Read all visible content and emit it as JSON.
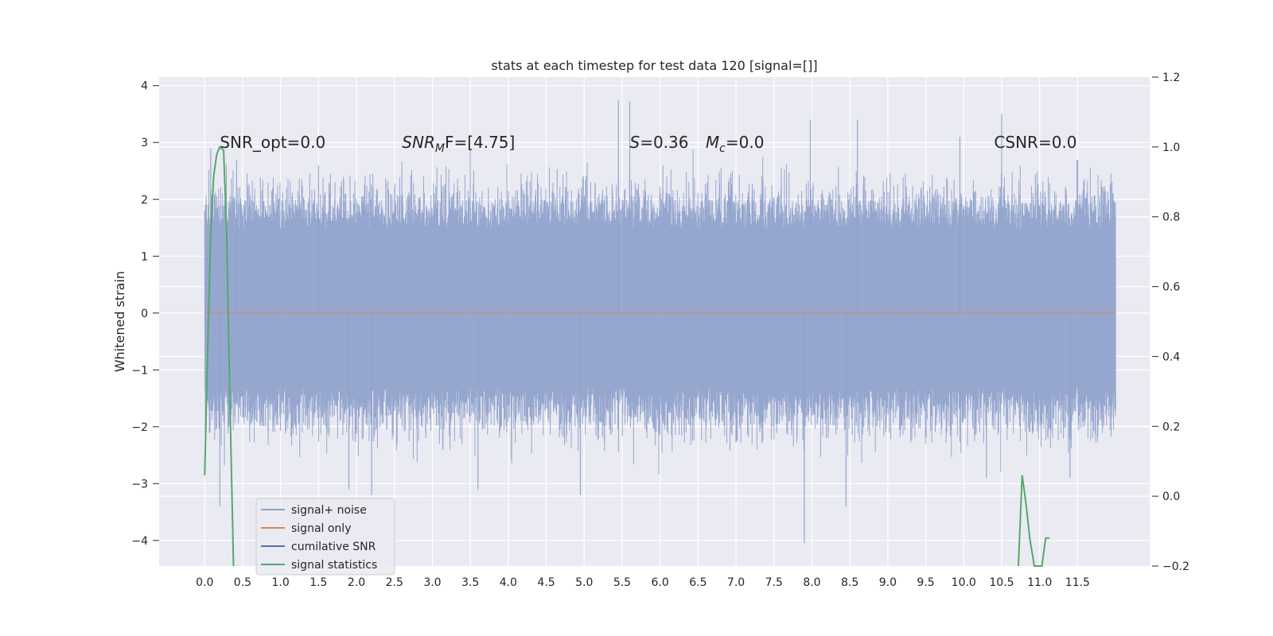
{
  "chart_data": {
    "type": "line",
    "title": "stats at each timestep for test data 120 [signal=[]]",
    "ylabel": "Whitened strain",
    "xlabel": "",
    "xlim": [
      -0.6,
      12.45
    ],
    "ylim": [
      -4.45,
      4.15
    ],
    "y2lim": [
      -0.2,
      1.2
    ],
    "grid": true,
    "x_ticks": [
      "0.0",
      "0.5",
      "1.0",
      "1.5",
      "2.0",
      "2.5",
      "3.0",
      "3.5",
      "4.0",
      "4.5",
      "5.0",
      "5.5",
      "6.0",
      "6.5",
      "7.0",
      "7.5",
      "8.0",
      "8.5",
      "9.0",
      "9.5",
      "10.0",
      "10.5",
      "11.0",
      "11.5"
    ],
    "y_ticks": [
      -4,
      -3,
      -2,
      -1,
      0,
      1,
      2,
      3,
      4
    ],
    "y2_ticks": [
      -0.2,
      0.0,
      0.2,
      0.4,
      0.6,
      0.8,
      1.0,
      1.2
    ],
    "y_tick_labels": [
      "−4",
      "−3",
      "−2",
      "−1",
      "0",
      "1",
      "2",
      "3",
      "4"
    ],
    "y2_tick_labels": [
      "−0.2",
      "0.0",
      "0.2",
      "0.4",
      "0.6",
      "0.8",
      "1.0",
      "1.2"
    ],
    "colors": {
      "background": "#eaeaf2",
      "grid": "#ffffff",
      "noise": "#8da0cb",
      "signal_only": "#dd8452",
      "cumulative_snr": "#4c72b0",
      "signal_statistics": "#55a868"
    },
    "series": [
      {
        "name": "signal+ noise",
        "axis": "left",
        "style": "dense-noise",
        "t_range": [
          0.0,
          12.0
        ],
        "envelope_typical": [
          -1.6,
          1.8
        ],
        "spikes": [
          {
            "x": 0.08,
            "y": 2.9
          },
          {
            "x": 0.2,
            "y": -3.4
          },
          {
            "x": 0.42,
            "y": 2.7
          },
          {
            "x": 1.5,
            "y": 2.6
          },
          {
            "x": 1.9,
            "y": -3.1
          },
          {
            "x": 2.2,
            "y": -3.2
          },
          {
            "x": 5.45,
            "y": 3.75
          },
          {
            "x": 5.6,
            "y": 3.72
          },
          {
            "x": 7.9,
            "y": -4.05
          },
          {
            "x": 7.98,
            "y": 3.4
          },
          {
            "x": 8.45,
            "y": -3.4
          },
          {
            "x": 8.6,
            "y": 3.4
          },
          {
            "x": 10.5,
            "y": 3.5
          },
          {
            "x": 10.3,
            "y": -2.9
          },
          {
            "x": 4.95,
            "y": -3.2
          },
          {
            "x": 3.6,
            "y": -3.1
          },
          {
            "x": 11.4,
            "y": -2.9
          },
          {
            "x": 9.95,
            "y": 3.1
          }
        ]
      },
      {
        "name": "signal only",
        "axis": "left",
        "x": [
          0.0,
          12.0
        ],
        "y": [
          0.0,
          0.0
        ]
      },
      {
        "name": "cumilative SNR",
        "axis": "right",
        "x": [],
        "y": []
      },
      {
        "name": "signal statistics",
        "axis": "right",
        "x": [
          0.0,
          0.04,
          0.08,
          0.12,
          0.16,
          0.2,
          0.25,
          0.29,
          0.33,
          0.38,
          10.72,
          10.77,
          10.82,
          10.87,
          10.93,
          11.03,
          11.08,
          11.13
        ],
        "y": [
          0.06,
          0.42,
          0.76,
          0.92,
          0.98,
          1.0,
          0.99,
          0.75,
          0.3,
          -0.2,
          -0.2,
          0.06,
          -0.02,
          -0.12,
          -0.2,
          -0.2,
          -0.12,
          -0.12
        ]
      }
    ],
    "annotations": [
      {
        "text": "SNR_opt=0.0",
        "x": 0.2,
        "y": 3.0
      },
      {
        "text_main": "SNR",
        "text_sub": "M",
        "text_rest": "F=[4.75]",
        "x": 2.6,
        "y": 3.0
      },
      {
        "text_main": "S",
        "text_rest": "=0.36",
        "x": 5.6,
        "y": 3.0
      },
      {
        "text_main": "M",
        "text_sub": "c",
        "text_rest": "=0.0",
        "x": 6.6,
        "y": 3.0
      },
      {
        "text": "CSNR=0.0",
        "x": 10.4,
        "y": 3.0
      }
    ],
    "legend": {
      "position": "lower-left",
      "entries": [
        "signal+ noise",
        "signal only",
        "cumilative SNR",
        "signal statistics"
      ]
    }
  }
}
